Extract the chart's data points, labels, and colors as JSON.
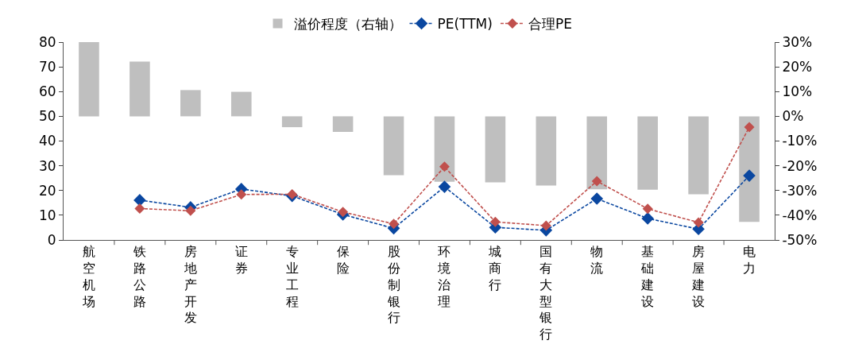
{
  "chart_data": {
    "type": "bar",
    "categories": [
      "航空机场",
      "铁路公路",
      "房地产开发",
      "证券",
      "专业工程",
      "保险",
      "股份制银行",
      "环境治理",
      "城商行",
      "国有大型银行",
      "物流",
      "基础建设",
      "房屋建设",
      "电力"
    ],
    "series": [
      {
        "name": "溢价程度（右轴）",
        "axis": "y2",
        "color": "#bfbfbf",
        "values": [
          30,
          22.1,
          10.6,
          9.9,
          -4.4,
          -6.3,
          -23.8,
          -26.5,
          -26.7,
          -28,
          -29.5,
          -29.7,
          -31.5,
          -42.7
        ]
      },
      {
        "name": "PE(TTM)",
        "type": "line",
        "color": "#0a47a0",
        "values": [
          null,
          16.1,
          13.2,
          20.6,
          17.8,
          10.3,
          4.7,
          21.5,
          5.1,
          3.9,
          16.7,
          8.7,
          4.4,
          26.0
        ]
      },
      {
        "name": "合理PE",
        "type": "line",
        "color": "#c0504d",
        "values": [
          null,
          12.7,
          11.8,
          18.4,
          18.5,
          11.3,
          6.5,
          29.6,
          7.3,
          5.8,
          23.8,
          12.6,
          7.1,
          45.6
        ]
      }
    ],
    "ylim": [
      0,
      80
    ],
    "yticks": [
      0,
      10,
      20,
      30,
      40,
      50,
      60,
      70,
      80
    ],
    "y2lim": [
      -50,
      30
    ],
    "y2ticks": [
      {
        "value": -50,
        "label": "-50%"
      },
      {
        "value": -40,
        "label": "-40%"
      },
      {
        "value": -30,
        "label": "-30%"
      },
      {
        "value": -20,
        "label": "-20%"
      },
      {
        "value": -10,
        "label": "-10%"
      },
      {
        "value": 0,
        "label": "0%"
      },
      {
        "value": 10,
        "label": "10%"
      },
      {
        "value": 20,
        "label": "20%"
      },
      {
        "value": 30,
        "label": "30%"
      }
    ],
    "marker": "diamond",
    "line_style": "dashed",
    "legend": "top"
  }
}
